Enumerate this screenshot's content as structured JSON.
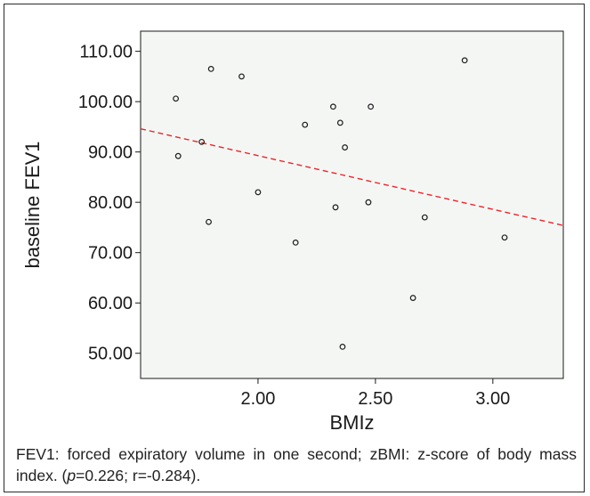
{
  "chart_data": {
    "type": "scatter",
    "title": "",
    "xlabel": "BMIz",
    "ylabel": "baseline FEV1",
    "xlim": [
      1.5,
      3.3
    ],
    "ylim": [
      45.0,
      114.0
    ],
    "xticks": [
      "2.00",
      "2.50",
      "3.00"
    ],
    "yticks": [
      "50.00",
      "60.00",
      "70.00",
      "80.00",
      "90.00",
      "100.00",
      "110.00"
    ],
    "x": [
      1.65,
      1.66,
      1.76,
      1.79,
      1.8,
      1.93,
      2.0,
      2.16,
      2.2,
      2.32,
      2.33,
      2.35,
      2.36,
      2.37,
      2.47,
      2.48,
      2.66,
      2.71,
      2.88,
      3.05
    ],
    "y": [
      100.6,
      89.2,
      92.0,
      76.1,
      106.5,
      105.0,
      82.0,
      72.0,
      95.4,
      99.0,
      79.0,
      95.8,
      51.3,
      90.9,
      80.0,
      99.0,
      61.0,
      77.0,
      108.2,
      73.0
    ],
    "fit_line": {
      "style": "dashed",
      "color": "#e8262a",
      "y_at_xmin": 94.6,
      "y_at_xmax": 75.4
    },
    "marker_color": "#1a1a1a",
    "plot_background": "#f4f6f4",
    "grid": false,
    "legend": "none"
  },
  "caption": {
    "text_main": "FEV1: forced expiratory volume in one second; zBMI: z-score of body mass index. (",
    "p_symbol": "p",
    "text_stats": "=0.226; r=-0.284)."
  }
}
